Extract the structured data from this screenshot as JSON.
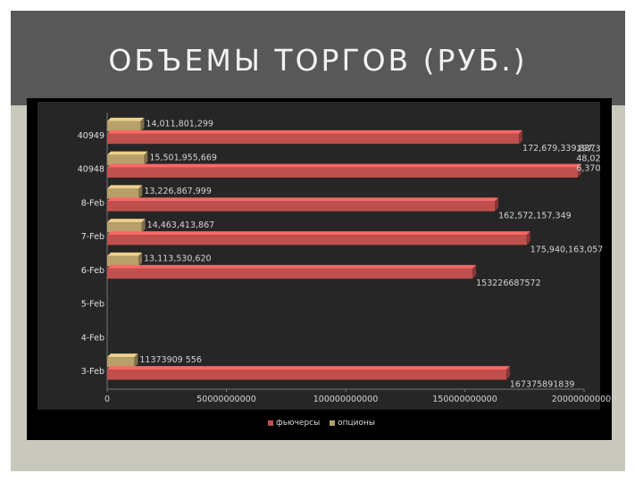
{
  "slide": {
    "title": "ОБЪЕМЫ ТОРГОВ (РУБ.)"
  },
  "colors": {
    "futures": "#c0504d",
    "options": "#b7a06a",
    "panel": "#262626"
  },
  "chart_data": {
    "type": "bar",
    "orientation": "horizontal",
    "title": "",
    "categories": [
      "3-Feb",
      "4-Feb",
      "5-Feb",
      "6-Feb",
      "7-Feb",
      "8-Feb",
      "40948",
      "40949"
    ],
    "series": [
      {
        "name": "фьючерсы",
        "values": [
          167375891839,
          null,
          null,
          153226687572,
          175940163057,
          162572157349,
          197348026370,
          172679339837
        ],
        "labels": [
          "167375891839",
          "",
          "",
          "153226687572",
          "175,940,163,057",
          "162,572,157,349",
          "197,3\n48,02\n6,370",
          "172,679,339,837"
        ]
      },
      {
        "name": "опционы",
        "values": [
          11373909556,
          null,
          null,
          13113530620,
          14463413867,
          13226867999,
          15501955669,
          14011801299
        ],
        "labels": [
          "11373909 556",
          "",
          "",
          "13,113,530,620",
          "14,463,413,867",
          "13,226,867,999",
          "15,501,955,669",
          "14,011,801,299"
        ]
      }
    ],
    "x_axis": {
      "min": 0,
      "max": 200000000000,
      "ticks": [
        "0",
        "50000000000",
        "100000000000",
        "150000000000",
        "200000000000"
      ]
    },
    "legend": {
      "position": "bottom",
      "entries": [
        "фьючерсы",
        "опционы"
      ]
    },
    "grid": false
  }
}
